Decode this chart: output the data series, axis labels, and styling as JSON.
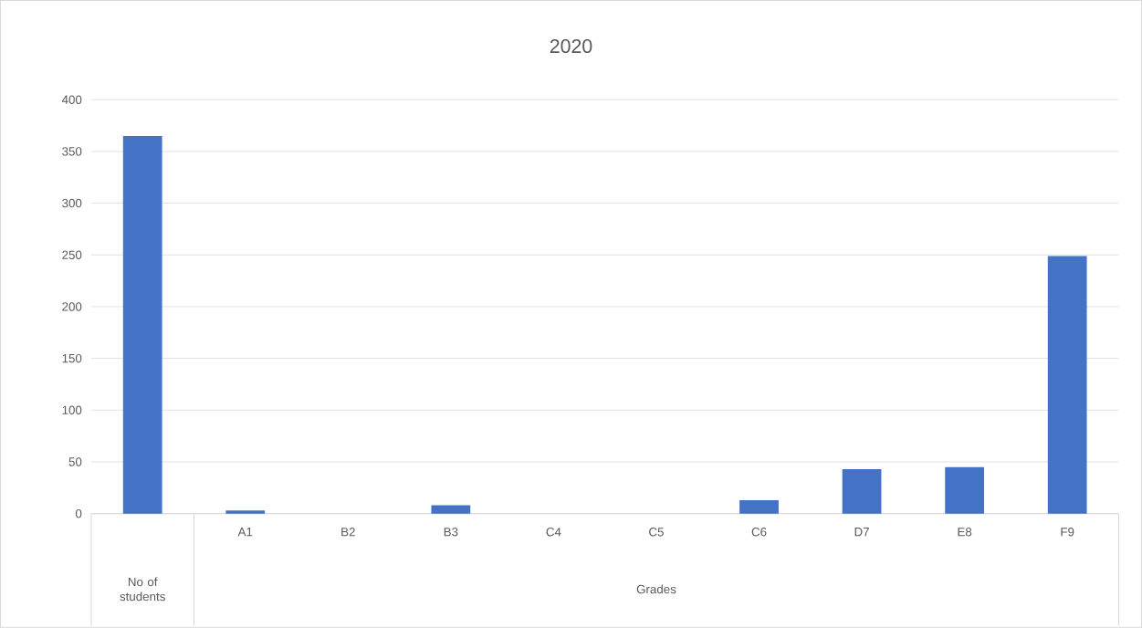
{
  "chart_data": {
    "type": "bar",
    "title": "2020",
    "categories": [
      null,
      "A1",
      "B2",
      "B3",
      "C4",
      "C5",
      "C6",
      "D7",
      "E8",
      "F9"
    ],
    "annotations": [
      "No of students",
      "Grades"
    ],
    "values": [
      365,
      3,
      0,
      8,
      0,
      0,
      13,
      43,
      45,
      249
    ],
    "color": "#4472c4",
    "ylim": [
      0,
      400
    ],
    "yticks": [
      0,
      50,
      100,
      150,
      200,
      250,
      300,
      350,
      400
    ],
    "grid": "y"
  }
}
